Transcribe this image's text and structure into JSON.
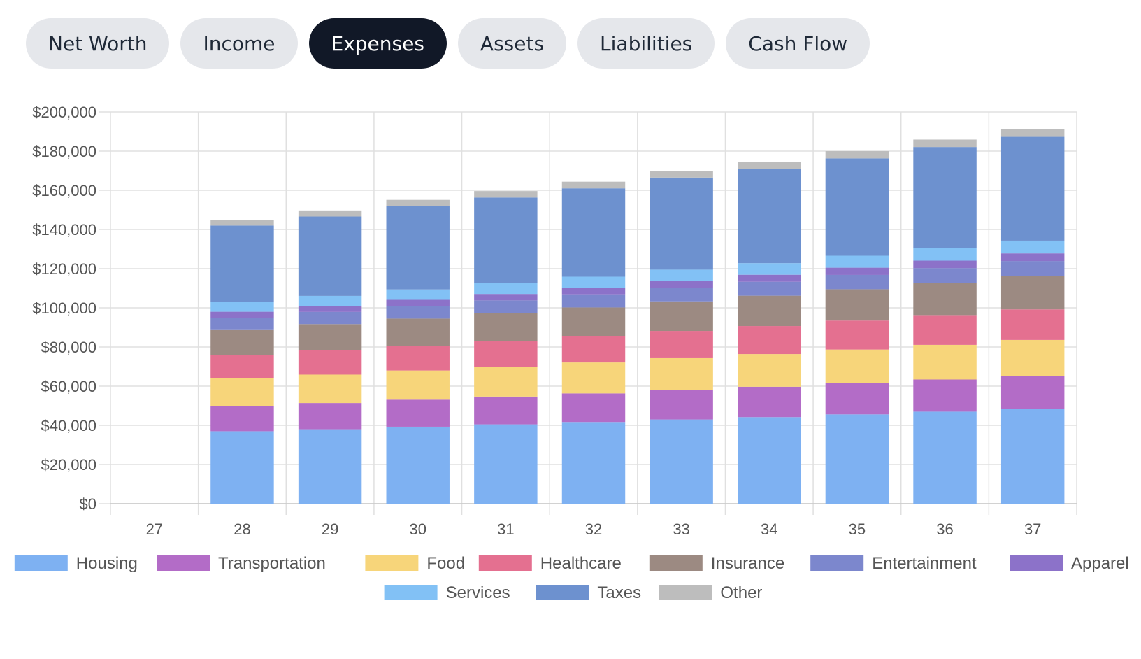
{
  "tabs": [
    {
      "label": "Net Worth",
      "active": false
    },
    {
      "label": "Income",
      "active": false
    },
    {
      "label": "Expenses",
      "active": true
    },
    {
      "label": "Assets",
      "active": false
    },
    {
      "label": "Liabilities",
      "active": false
    },
    {
      "label": "Cash Flow",
      "active": false
    }
  ],
  "chart_data": {
    "type": "bar",
    "stacked": true,
    "categories": [
      "27",
      "28",
      "29",
      "30",
      "31",
      "32",
      "33",
      "34",
      "35",
      "36",
      "37"
    ],
    "ylim": [
      0,
      200000
    ],
    "yticks": [
      0,
      20000,
      40000,
      60000,
      80000,
      100000,
      120000,
      140000,
      160000,
      180000,
      200000
    ],
    "ytick_labels": [
      "$0",
      "$20,000",
      "$40,000",
      "$60,000",
      "$80,000",
      "$100,000",
      "$120,000",
      "$140,000",
      "$160,000",
      "$180,000",
      "$200,000"
    ],
    "grid": true,
    "legend_position": "bottom",
    "series": [
      {
        "name": "Housing",
        "color": "#7eb1f2",
        "values": [
          0,
          37000,
          38000,
          39300,
          40500,
          41700,
          43000,
          44200,
          45600,
          47000,
          48400
        ]
      },
      {
        "name": "Transportation",
        "color": "#b36cc7",
        "values": [
          0,
          13000,
          13400,
          13800,
          14200,
          14600,
          15000,
          15500,
          15900,
          16400,
          16900
        ]
      },
      {
        "name": "Food",
        "color": "#f7d57a",
        "values": [
          0,
          14000,
          14500,
          14900,
          15300,
          15800,
          16300,
          16700,
          17200,
          17700,
          18300
        ]
      },
      {
        "name": "Healthcare",
        "color": "#e47090",
        "values": [
          0,
          12000,
          12400,
          12700,
          13100,
          13500,
          13900,
          14300,
          14800,
          15200,
          15600
        ]
      },
      {
        "name": "Insurance",
        "color": "#9c8a82",
        "values": [
          0,
          13000,
          13400,
          13800,
          14200,
          14600,
          15100,
          15500,
          16000,
          16400,
          16900
        ]
      },
      {
        "name": "Entertainment",
        "color": "#7c87cd",
        "values": [
          0,
          6000,
          6200,
          6400,
          6500,
          6700,
          6900,
          7100,
          7300,
          7600,
          7800
        ]
      },
      {
        "name": "Apparel",
        "color": "#8c72c9",
        "values": [
          0,
          3000,
          3100,
          3200,
          3300,
          3400,
          3500,
          3600,
          3700,
          3800,
          3900
        ]
      },
      {
        "name": "Services",
        "color": "#82c1f5",
        "values": [
          0,
          5000,
          5100,
          5300,
          5400,
          5600,
          5800,
          5900,
          6100,
          6300,
          6500
        ]
      },
      {
        "name": "Taxes",
        "color": "#6d91cf",
        "values": [
          0,
          39000,
          40500,
          42500,
          43800,
          45100,
          47000,
          48000,
          49700,
          51700,
          53000
        ]
      },
      {
        "name": "Other",
        "color": "#bdbdbd",
        "values": [
          0,
          3000,
          3100,
          3200,
          3300,
          3400,
          3500,
          3600,
          3700,
          3800,
          3900
        ]
      }
    ]
  }
}
